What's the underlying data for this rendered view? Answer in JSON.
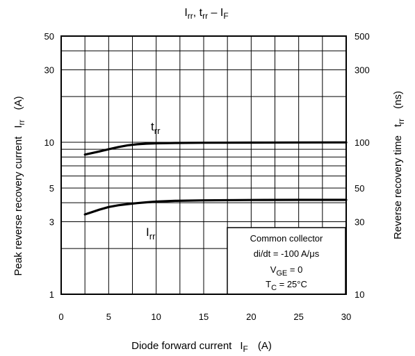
{
  "chart_data": {
    "type": "line",
    "title": {
      "main": "I",
      "main_sub": "rr",
      "mid": ", t",
      "mid_sub": "rr",
      "dash": " – I",
      "dash_sub": "F"
    },
    "xlabel": {
      "main": "Diode forward current",
      "sym": "I",
      "sub": "F",
      "unit": "(A)"
    },
    "ylabel_left": {
      "main": "Peak reverse recovery current",
      "sym": "I",
      "sub": "rr",
      "unit": "(A)"
    },
    "ylabel_right": {
      "main": "Reverse recovery time",
      "sym": "t",
      "sub": "rr",
      "unit": "(ns)"
    },
    "x_ticks": [
      "0",
      "5",
      "10",
      "15",
      "20",
      "25",
      "30"
    ],
    "xlim": [
      0,
      30
    ],
    "y_left_ticks": [
      "1",
      "3",
      "5",
      "10",
      "30",
      "50"
    ],
    "y_left_scale": "log",
    "ylim_left": [
      1,
      50
    ],
    "y_right_ticks": [
      "10",
      "30",
      "50",
      "100",
      "300",
      "500"
    ],
    "y_right_scale": "log",
    "ylim_right": [
      10,
      500
    ],
    "grid": true,
    "series": [
      {
        "name": "t",
        "name_sub": "rr",
        "axis": "right",
        "x": [
          2.5,
          4,
          5,
          6,
          7,
          8,
          9,
          10,
          12,
          15,
          20,
          25,
          30
        ],
        "y": [
          83,
          87,
          90,
          93,
          95.5,
          97,
          98,
          98.5,
          99,
          99.3,
          99.5,
          99.7,
          99.8
        ]
      },
      {
        "name": "I",
        "name_sub": "rr",
        "axis": "left",
        "x": [
          2.5,
          4,
          5,
          6,
          7,
          8,
          9,
          10,
          12,
          15,
          20,
          25,
          30
        ],
        "y": [
          3.35,
          3.6,
          3.75,
          3.85,
          3.92,
          3.98,
          4.03,
          4.07,
          4.12,
          4.15,
          4.17,
          4.18,
          4.18
        ]
      }
    ],
    "annotation": {
      "line1": "Common collector",
      "line2": "di/dt = -100 A/μs",
      "line3_pre": "V",
      "line3_sub": "GE",
      "line3_post": " = 0",
      "line4_pre": "T",
      "line4_sub": "C",
      "line4_post": " = 25°C"
    }
  }
}
